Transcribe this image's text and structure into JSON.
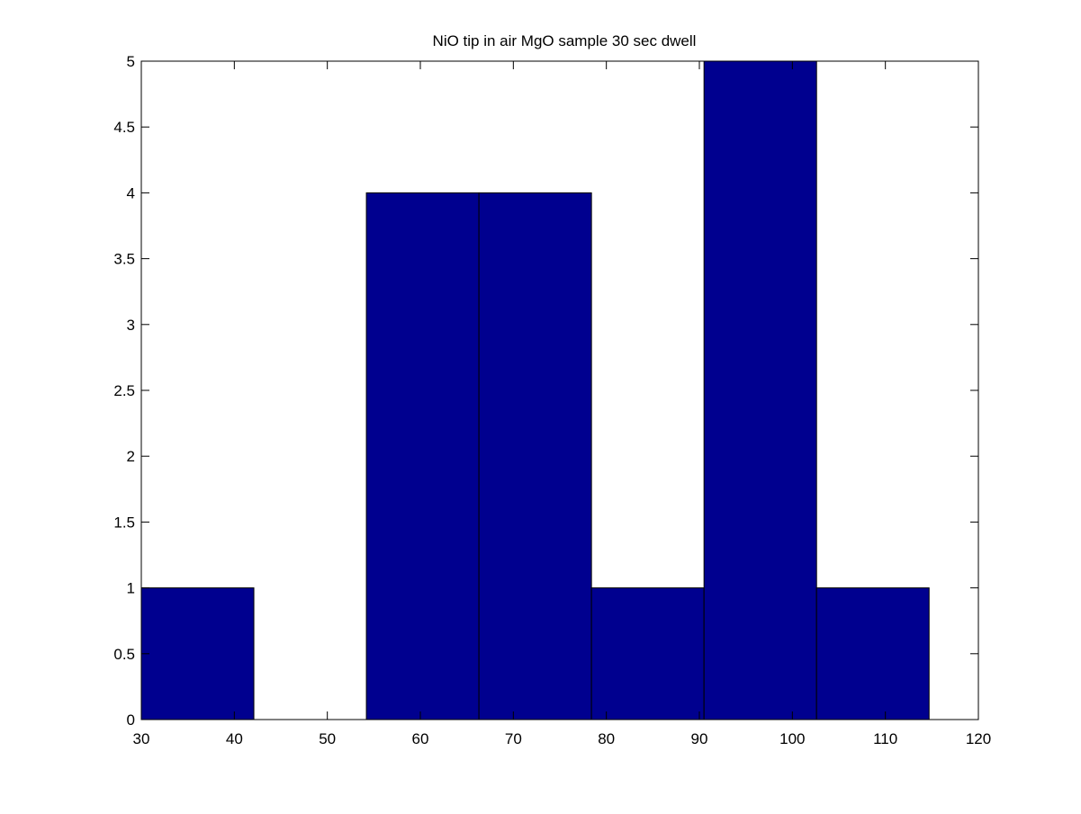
{
  "chart_data": {
    "type": "bar",
    "subtype": "histogram",
    "title": "NiO tip in air MgO sample 30 sec dwell",
    "xlabel": "",
    "ylabel": "",
    "xlim": [
      30,
      120
    ],
    "ylim": [
      0,
      5
    ],
    "xticks": [
      30,
      40,
      50,
      60,
      70,
      80,
      90,
      100,
      110,
      120
    ],
    "yticks": [
      0,
      0.5,
      1,
      1.5,
      2,
      2.5,
      3,
      3.5,
      4,
      4.5,
      5
    ],
    "bin_edges": [
      30,
      42.1,
      54.2,
      66.3,
      78.4,
      90.5,
      102.6,
      114.7
    ],
    "values": [
      1,
      0,
      4,
      4,
      1,
      5,
      1
    ],
    "grid": false,
    "legend": "none",
    "colors": {
      "bar_fill": "#00008f",
      "bar_edge": "#000000",
      "axes": "#000000"
    }
  }
}
